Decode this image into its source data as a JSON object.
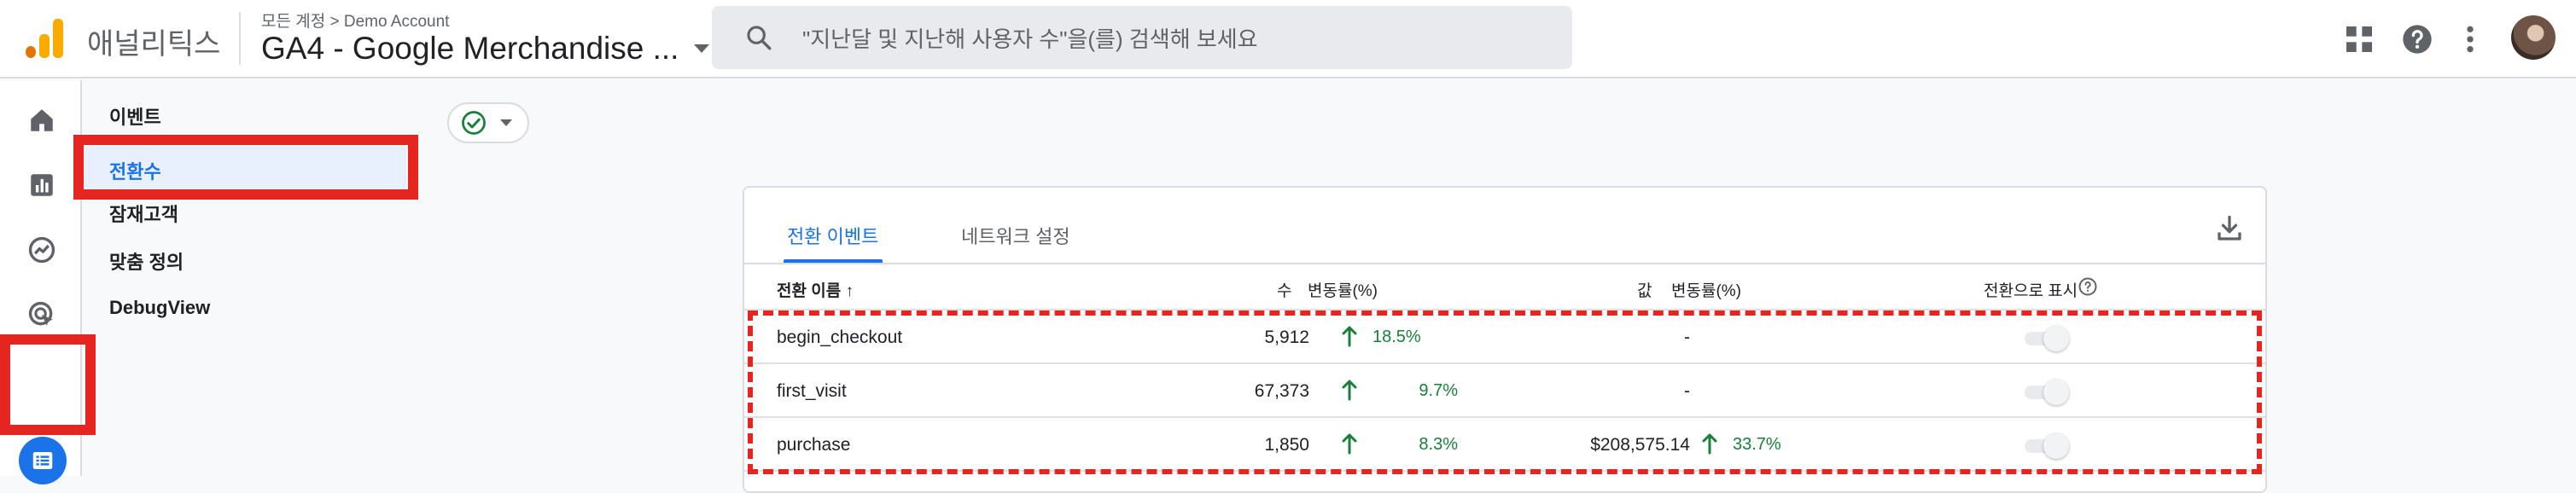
{
  "header": {
    "brand": "애널리틱스",
    "breadcrumb": "모든 계정  >  Demo Account",
    "property_name": "GA4 - Google Merchandise ...",
    "search_placeholder": "\"지난달 및 지난해 사용자 수\"을(를) 검색해 보세요",
    "icons": [
      "apps-grid-icon",
      "help-icon",
      "more-vert-icon",
      "avatar"
    ]
  },
  "rail": {
    "items": [
      "home-icon",
      "reports-icon",
      "explore-icon",
      "advertising-icon",
      "configure-icon"
    ],
    "active": "configure-icon"
  },
  "subnav": {
    "items": [
      {
        "label": "이벤트"
      },
      {
        "label": "전환수",
        "selected": true
      },
      {
        "label": "잠재고객"
      },
      {
        "label": "맞춤 정의"
      },
      {
        "label": "DebugView"
      }
    ]
  },
  "card": {
    "tabs": [
      {
        "label": "전환 이벤트",
        "active": true
      },
      {
        "label": "네트워크 설정",
        "active": false
      }
    ],
    "columns": {
      "name": "전환 이름 ↑",
      "count": "수",
      "count_change": "변동률(%)",
      "value": "값",
      "value_change": "변동률(%)",
      "mark_as_conversion": "전환으로 표시"
    },
    "rows": [
      {
        "name": "begin_checkout",
        "count": "5,912",
        "count_change": "18.5%",
        "value": "-",
        "value_change": ""
      },
      {
        "name": "first_visit",
        "count": "67,373",
        "count_change": "9.7%",
        "value": "-",
        "value_change": ""
      },
      {
        "name": "purchase",
        "count": "1,850",
        "count_change": "8.3%",
        "value": "$208,575.14",
        "value_change": "33.7%"
      }
    ]
  },
  "colors": {
    "accent": "#1a73e8",
    "positive": "#188038",
    "highlight": "#e52620"
  }
}
